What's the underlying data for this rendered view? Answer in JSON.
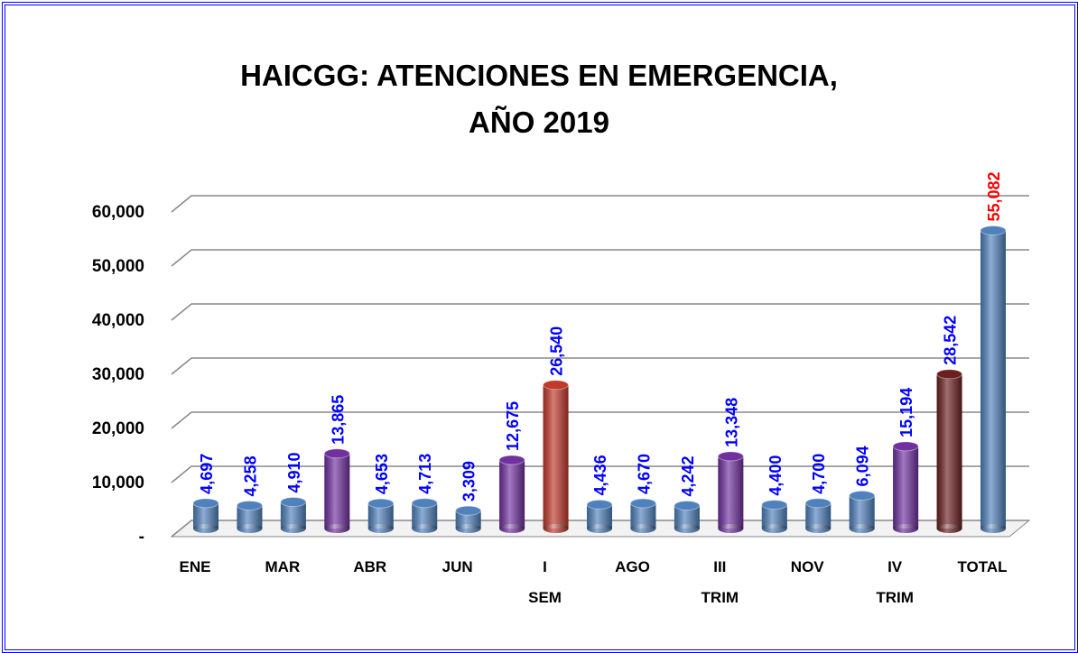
{
  "chart_data": {
    "type": "bar3d",
    "title": "HAICGG: ATENCIONES EN EMERGENCIA,\nAÑO 2019",
    "categories": [
      "ENE",
      null,
      "MAR",
      null,
      "ABR",
      null,
      "JUN",
      null,
      "I\nSEM",
      null,
      "AGO",
      null,
      "III\nTRIM",
      null,
      "NOV",
      null,
      "IV\nTRIM",
      null,
      "TOTAL"
    ],
    "values": [
      4697,
      4258,
      4910,
      13865,
      4653,
      4713,
      3309,
      12675,
      26540,
      4436,
      4670,
      4242,
      13348,
      4400,
      4700,
      6094,
      15194,
      28542,
      55082
    ],
    "value_labels": [
      "4,697",
      "4,258",
      "4,910",
      "13,865",
      "4,653",
      "4,713",
      "3,309",
      "12,675",
      "26,540",
      "4,436",
      "4,670",
      "4,242",
      "13,348",
      "4,400",
      "4,700",
      "6,094",
      "15,194",
      "28,542",
      "55,082"
    ],
    "colors": [
      "#4f81bd",
      "#4f81bd",
      "#4f81bd",
      "#7030a0",
      "#4f81bd",
      "#4f81bd",
      "#4f81bd",
      "#7030a0",
      "#c0392b",
      "#4f81bd",
      "#4f81bd",
      "#4f81bd",
      "#7030a0",
      "#4f81bd",
      "#4f81bd",
      "#4f81bd",
      "#7030a0",
      "#6b1f1f",
      "#4f81bd"
    ],
    "value_label_colors": [
      "#0000ff",
      "#0000ff",
      "#0000ff",
      "#0000ff",
      "#0000ff",
      "#0000ff",
      "#0000ff",
      "#0000ff",
      "#0000ff",
      "#0000ff",
      "#0000ff",
      "#0000ff",
      "#0000ff",
      "#0000ff",
      "#0000ff",
      "#0000ff",
      "#0000ff",
      "#0000ff",
      "#ff0000"
    ],
    "ylim": [
      0,
      60000
    ],
    "yticks": [
      {
        "value": 0,
        "label": "-"
      },
      {
        "value": 10000,
        "label": "10,000"
      },
      {
        "value": 20000,
        "label": "20,000"
      },
      {
        "value": 30000,
        "label": "30,000"
      },
      {
        "value": 40000,
        "label": "40,000"
      },
      {
        "value": 50000,
        "label": "50,000"
      },
      {
        "value": 60000,
        "label": "60,000"
      }
    ],
    "grid": true
  }
}
